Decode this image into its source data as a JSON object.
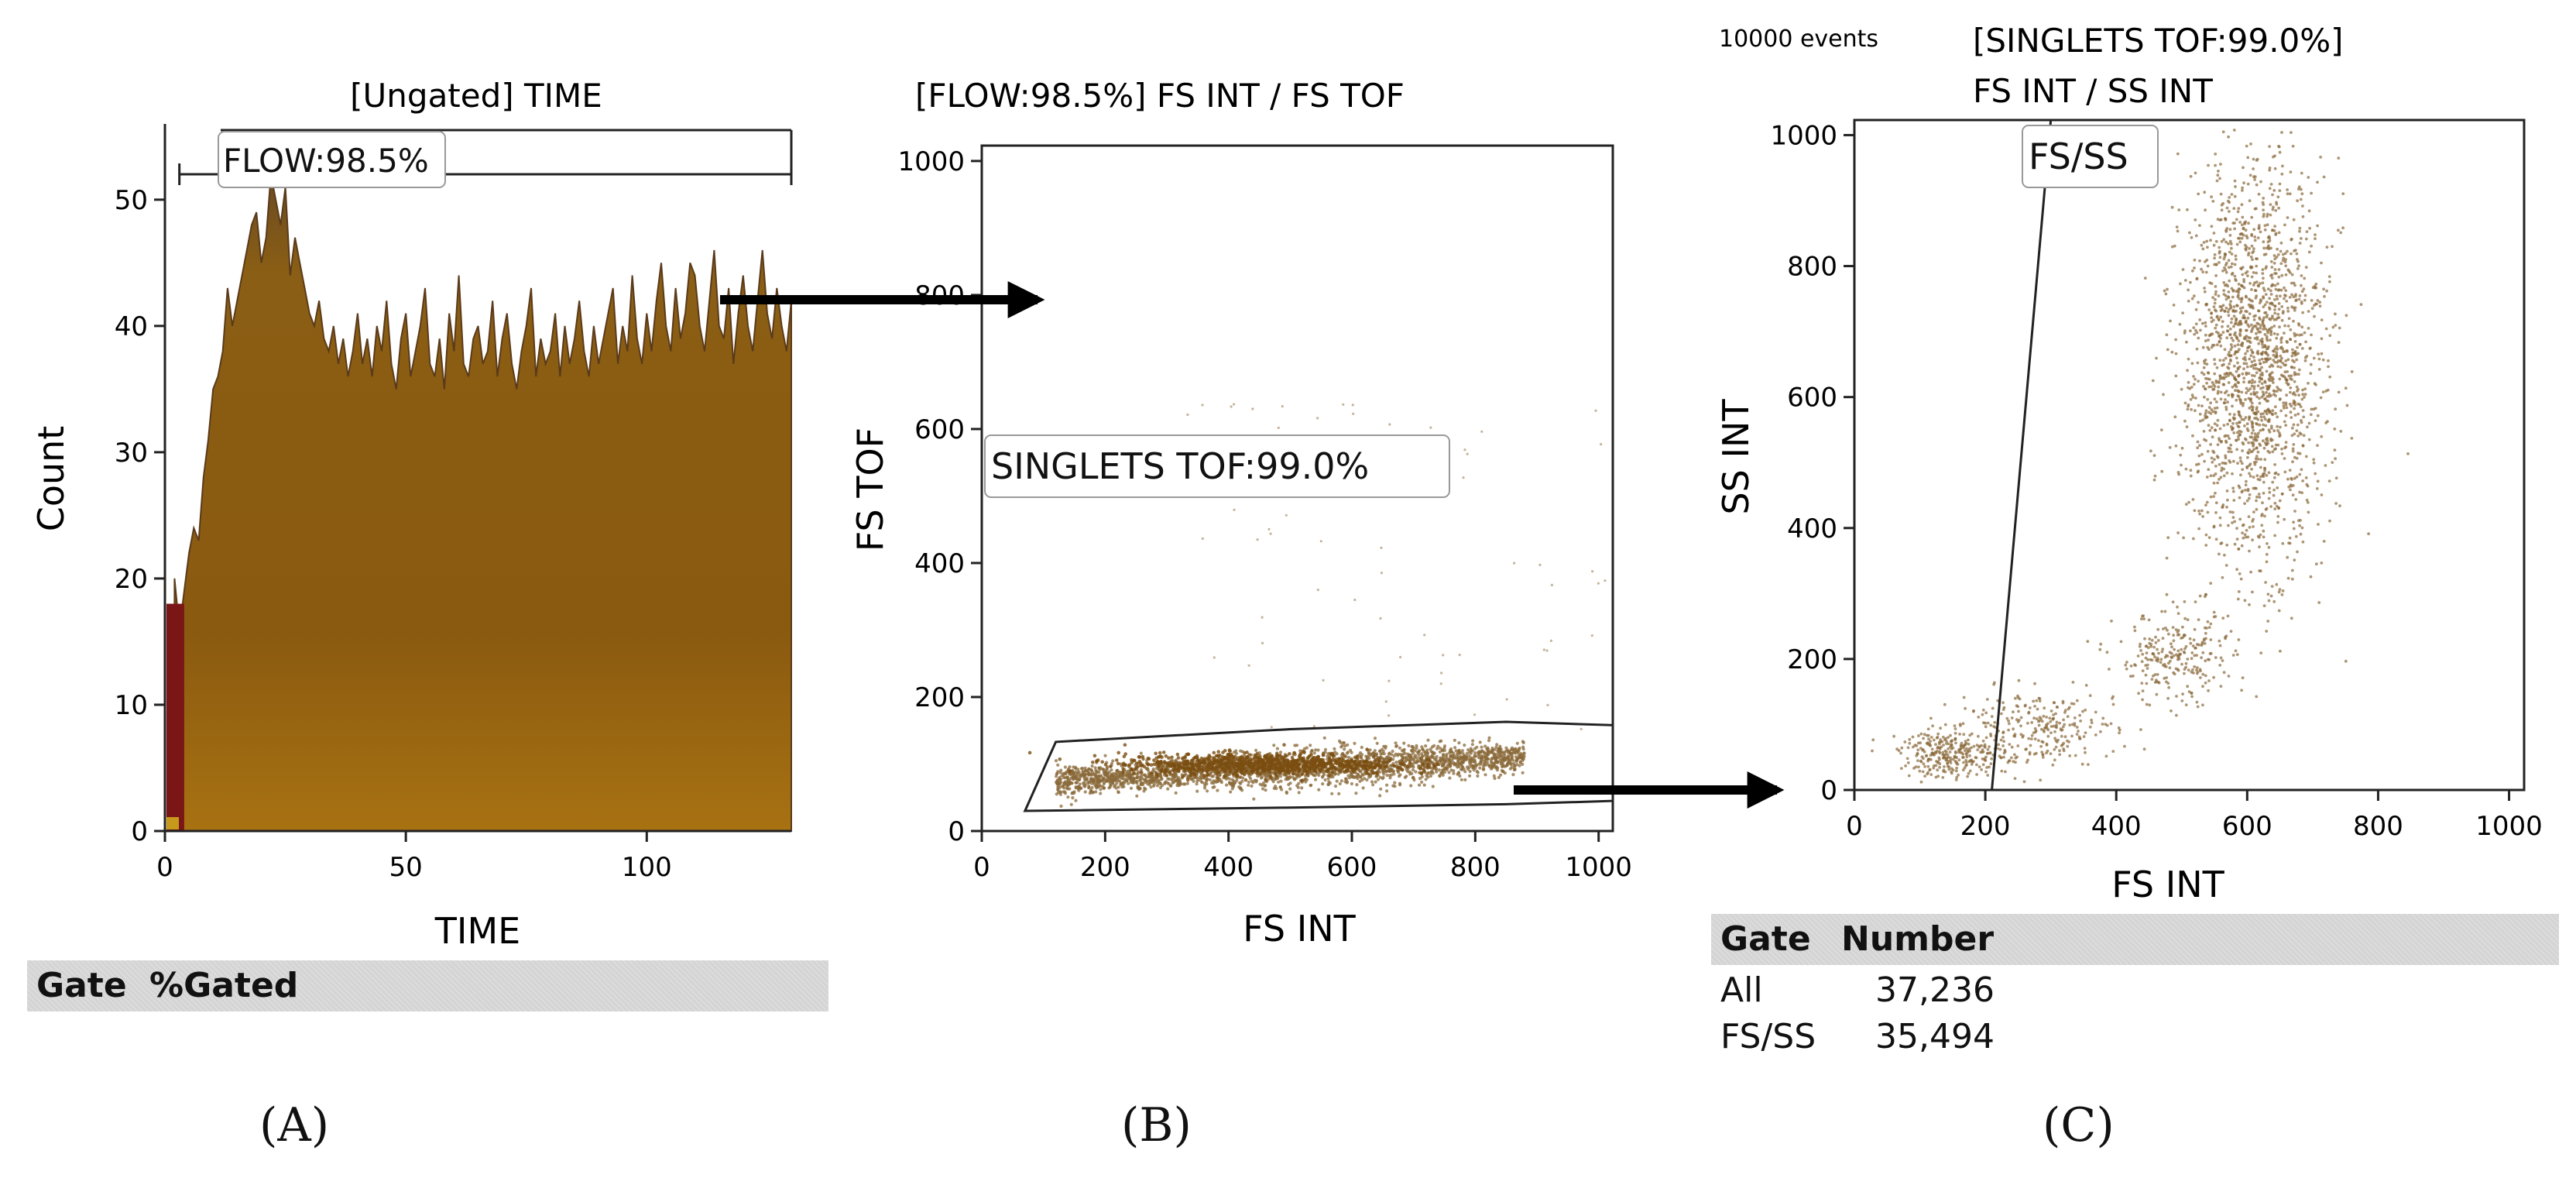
{
  "colors": {
    "histogram_fill": "#8a5a10",
    "histogram_edge": "#5a3a1a",
    "histogram_dark": "#7a1616",
    "histogram_light": "#c89a1c",
    "dots": "#8a6a3a",
    "axis": "#222222",
    "header_bg": "#d4d4d4",
    "arrow": "#000000"
  },
  "panel_a": {
    "letter": "(A)",
    "gate_header": {
      "col1": "Gate",
      "col2": "%Gated"
    }
  },
  "panel_b": {
    "letter": "(B)"
  },
  "panel_c": {
    "letter": "(C)",
    "events_label": "10000 events",
    "stats": {
      "headers": [
        "Gate",
        "Number"
      ],
      "rows": [
        {
          "gate": "All",
          "number": "37,236"
        },
        {
          "gate": "FS/SS",
          "number": "35,494"
        }
      ]
    }
  },
  "chart_data": [
    {
      "id": "A",
      "type": "area",
      "title": "[Ungated] TIME",
      "xlabel": "TIME",
      "ylabel": "Count",
      "xlim": [
        0,
        130
      ],
      "ylim": [
        0,
        56
      ],
      "xticks": [
        0,
        50,
        100
      ],
      "yticks": [
        0,
        10,
        20,
        30,
        40,
        50
      ],
      "grid": false,
      "gate": {
        "label": "FLOW:98.5%",
        "type": "range",
        "x_start": 3,
        "x_end": 130,
        "y_level": 53.5
      },
      "series": [
        {
          "name": "Count",
          "x_start": 2,
          "x_step": 1,
          "values": [
            20,
            16,
            19,
            22,
            24,
            23,
            28,
            31,
            35,
            36,
            38,
            43,
            40,
            42,
            44,
            46,
            48,
            49,
            45,
            47,
            52,
            50,
            48,
            51,
            44,
            47,
            45,
            43,
            41,
            40,
            42,
            39,
            38,
            40,
            37,
            39,
            36,
            38,
            41,
            37,
            39,
            36,
            40,
            38,
            42,
            37,
            35,
            39,
            41,
            36,
            38,
            40,
            43,
            37,
            36,
            39,
            35,
            41,
            38,
            44,
            37,
            36,
            39,
            40,
            37,
            38,
            42,
            36,
            39,
            41,
            37,
            35,
            38,
            40,
            43,
            36,
            39,
            37,
            38,
            41,
            36,
            40,
            37,
            39,
            42,
            38,
            36,
            40,
            37,
            39,
            41,
            43,
            37,
            40,
            38,
            44,
            39,
            37,
            41,
            38,
            42,
            45,
            40,
            38,
            43,
            39,
            41,
            45,
            44,
            40,
            38,
            42,
            46,
            40,
            39,
            43,
            37,
            41,
            44,
            40,
            38,
            42,
            46,
            41,
            39,
            43,
            40,
            38,
            42
          ]
        }
      ]
    },
    {
      "id": "B",
      "type": "scatter",
      "title": "[FLOW:98.5%] FS INT / FS TOF",
      "xlabel": "FS INT",
      "ylabel": "FS TOF",
      "xlim": [
        0,
        1023
      ],
      "ylim": [
        0,
        1023
      ],
      "xticks": [
        0,
        200,
        400,
        600,
        800,
        1000
      ],
      "yticks": [
        0,
        200,
        400,
        600,
        800,
        1000
      ],
      "grid": false,
      "gate": {
        "label": "SINGLETS TOF:99.0%",
        "type": "polygon",
        "vertices": [
          [
            70,
            30
          ],
          [
            120,
            133
          ],
          [
            500,
            152
          ],
          [
            850,
            163
          ],
          [
            1023,
            158
          ],
          [
            1023,
            45
          ],
          [
            850,
            40
          ],
          [
            500,
            35
          ],
          [
            70,
            30
          ]
        ]
      },
      "clusters": [
        {
          "name": "singlets",
          "x_range": [
            110,
            870
          ],
          "y_range": [
            55,
            115
          ],
          "center": [
            550,
            100
          ],
          "n_points": 2200
        },
        {
          "name": "sparse",
          "x_range": [
            300,
            1023
          ],
          "y_range": [
            150,
            650
          ],
          "n_points": 60
        }
      ]
    },
    {
      "id": "C",
      "type": "scatter",
      "title": "[SINGLETS TOF:99.0%]",
      "subtitle": "FS INT / SS INT",
      "xlabel": "FS INT",
      "ylabel": "SS INT",
      "xlim": [
        0,
        1023
      ],
      "ylim": [
        0,
        1023
      ],
      "xticks": [
        0,
        200,
        400,
        600,
        800,
        1000
      ],
      "yticks": [
        0,
        200,
        400,
        600,
        800,
        1000
      ],
      "grid": false,
      "gate": {
        "label": "FS/SS",
        "type": "line-boundary",
        "line": [
          [
            210,
            0
          ],
          [
            300,
            1023
          ]
        ]
      },
      "clusters": [
        {
          "name": "main",
          "center": [
            610,
            650
          ],
          "sd": [
            55,
            150
          ],
          "n_points": 1900
        },
        {
          "name": "mid",
          "center": [
            490,
            200
          ],
          "sd": [
            45,
            35
          ],
          "n_points": 250
        },
        {
          "name": "low-left",
          "center": [
            150,
            55
          ],
          "sd": [
            40,
            18
          ],
          "n_points": 300
        },
        {
          "name": "low-bridge",
          "center": [
            280,
            95
          ],
          "sd": [
            60,
            28
          ],
          "n_points": 260
        }
      ]
    }
  ]
}
